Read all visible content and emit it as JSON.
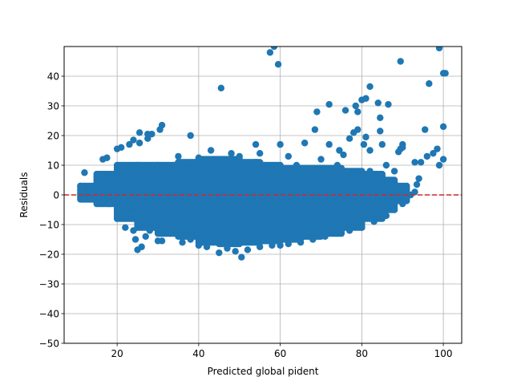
{
  "chart_data": {
    "type": "scatter",
    "title": "",
    "xlabel": "Predicted global pident",
    "ylabel": "Residuals",
    "xlim": [
      7,
      104.5
    ],
    "ylim": [
      -50,
      50
    ],
    "xticks": [
      20,
      40,
      60,
      80,
      100
    ],
    "yticks": [
      -50,
      -40,
      -30,
      -20,
      -10,
      0,
      10,
      20,
      30,
      40
    ],
    "grid": true,
    "reference_line": {
      "y": 0,
      "color": "#d62728",
      "style": "dashed"
    },
    "colors": {
      "points": "#1f77b4",
      "grid": "#b0b0b0",
      "reference": "#d62728"
    },
    "series": [
      {
        "points": [
          [
            45.5,
            36
          ],
          [
            57.5,
            48
          ],
          [
            58.5,
            50
          ],
          [
            59.5,
            44
          ],
          [
            82,
            36.5
          ],
          [
            81,
            32.5
          ],
          [
            80,
            32
          ],
          [
            78.5,
            30
          ],
          [
            79,
            28
          ],
          [
            76,
            28.5
          ],
          [
            72,
            30.5
          ],
          [
            69,
            28
          ],
          [
            68.5,
            22
          ],
          [
            84,
            31
          ],
          [
            86.5,
            30.5
          ],
          [
            84.5,
            26
          ],
          [
            84.5,
            21.5
          ],
          [
            89.5,
            45
          ],
          [
            96.5,
            37.5
          ],
          [
            99,
            49.5
          ],
          [
            100,
            41
          ],
          [
            100.5,
            41
          ],
          [
            100,
            23
          ],
          [
            95.5,
            22
          ],
          [
            96,
            13
          ],
          [
            97.5,
            14
          ],
          [
            98.5,
            15.5
          ],
          [
            99,
            10
          ],
          [
            100,
            12
          ],
          [
            93,
            11
          ],
          [
            94.5,
            11
          ],
          [
            89,
            14.5
          ],
          [
            90,
            16
          ],
          [
            89.5,
            15.5
          ],
          [
            90,
            17
          ],
          [
            85,
            17
          ],
          [
            81,
            19.5
          ],
          [
            80.5,
            17
          ],
          [
            82,
            15
          ],
          [
            77,
            19
          ],
          [
            78,
            21
          ],
          [
            79,
            22
          ],
          [
            74.5,
            15
          ],
          [
            75.5,
            13.5
          ],
          [
            72,
            17
          ],
          [
            66,
            17.5
          ],
          [
            62,
            13
          ],
          [
            60,
            17
          ],
          [
            54,
            17
          ],
          [
            55,
            14
          ],
          [
            48,
            14
          ],
          [
            43,
            15
          ],
          [
            38,
            20
          ],
          [
            31,
            23.5
          ],
          [
            30.5,
            22
          ],
          [
            28.5,
            20.5
          ],
          [
            27.5,
            20.5
          ],
          [
            27.5,
            19
          ],
          [
            25.5,
            21
          ],
          [
            24,
            18.5
          ],
          [
            25.5,
            17.5
          ],
          [
            23,
            17
          ],
          [
            21,
            16
          ],
          [
            20,
            15.5
          ],
          [
            16.5,
            12
          ],
          [
            17.5,
            12.5
          ],
          [
            12,
            7.5
          ],
          [
            11,
            3
          ],
          [
            11.5,
            1.5
          ],
          [
            13,
            0.5
          ],
          [
            92,
            0
          ],
          [
            93.5,
            3.5
          ],
          [
            94,
            5.5
          ],
          [
            35,
            13
          ],
          [
            40,
            12.5
          ],
          [
            50,
            13
          ],
          [
            70,
            12
          ],
          [
            86,
            10
          ],
          [
            88,
            8
          ],
          [
            23.5,
            -6.5
          ],
          [
            22,
            -11
          ],
          [
            24,
            -12
          ],
          [
            25,
            -18.5
          ],
          [
            26,
            -17.5
          ],
          [
            24.5,
            -15
          ],
          [
            27,
            -14
          ],
          [
            28,
            -12
          ],
          [
            30,
            -15.5
          ],
          [
            31,
            -15.5
          ],
          [
            33,
            -13
          ],
          [
            36,
            -16
          ],
          [
            38,
            -15
          ],
          [
            40,
            -17
          ],
          [
            42,
            -17.5
          ],
          [
            45,
            -19.5
          ],
          [
            47,
            -18
          ],
          [
            49,
            -19
          ],
          [
            50.5,
            -21
          ],
          [
            52,
            -18.5
          ],
          [
            55,
            -17.5
          ],
          [
            58,
            -17
          ],
          [
            60,
            -17
          ],
          [
            62,
            -16.5
          ],
          [
            65,
            -16
          ],
          [
            68,
            -15
          ],
          [
            71,
            -14
          ],
          [
            74,
            -13
          ],
          [
            77,
            -12
          ],
          [
            80,
            -11
          ],
          [
            83,
            -9
          ],
          [
            86,
            -7
          ],
          [
            88,
            -5
          ],
          [
            90,
            -3
          ],
          [
            91,
            -1
          ],
          [
            20,
            -5
          ],
          [
            18,
            -3
          ],
          [
            15,
            -2
          ],
          [
            14,
            1
          ],
          [
            16,
            2
          ],
          [
            19,
            4
          ],
          [
            22,
            6
          ],
          [
            26,
            8
          ],
          [
            30,
            9
          ],
          [
            34,
            10
          ],
          [
            44,
            11
          ],
          [
            54,
            11
          ],
          [
            64,
            10
          ],
          [
            74,
            10
          ],
          [
            82,
            8
          ],
          [
            87,
            4
          ],
          [
            90,
            2
          ],
          [
            93,
            1
          ]
        ]
      }
    ],
    "bands": [
      {
        "x_from": 11,
        "x_to": 15,
        "low": -1.5,
        "high": 3
      },
      {
        "x_from": 15,
        "x_to": 20,
        "low": -3,
        "high": 7
      },
      {
        "x_from": 20,
        "x_to": 25,
        "low": -8,
        "high": 10
      },
      {
        "x_from": 25,
        "x_to": 30,
        "low": -11,
        "high": 10
      },
      {
        "x_from": 30,
        "x_to": 35,
        "low": -13,
        "high": 10
      },
      {
        "x_from": 35,
        "x_to": 40,
        "low": -14,
        "high": 11
      },
      {
        "x_from": 40,
        "x_to": 45,
        "low": -16,
        "high": 12
      },
      {
        "x_from": 45,
        "x_to": 50,
        "low": -16.5,
        "high": 12
      },
      {
        "x_from": 50,
        "x_to": 55,
        "low": -16,
        "high": 11
      },
      {
        "x_from": 55,
        "x_to": 60,
        "low": -15.5,
        "high": 10
      },
      {
        "x_from": 60,
        "x_to": 65,
        "low": -15,
        "high": 9
      },
      {
        "x_from": 65,
        "x_to": 70,
        "low": -14,
        "high": 9
      },
      {
        "x_from": 70,
        "x_to": 75,
        "low": -13,
        "high": 9
      },
      {
        "x_from": 75,
        "x_to": 80,
        "low": -11,
        "high": 8
      },
      {
        "x_from": 80,
        "x_to": 85,
        "low": -8,
        "high": 7
      },
      {
        "x_from": 85,
        "x_to": 88,
        "low": -5,
        "high": 5
      },
      {
        "x_from": 88,
        "x_to": 91,
        "low": -2,
        "high": 3
      }
    ]
  }
}
